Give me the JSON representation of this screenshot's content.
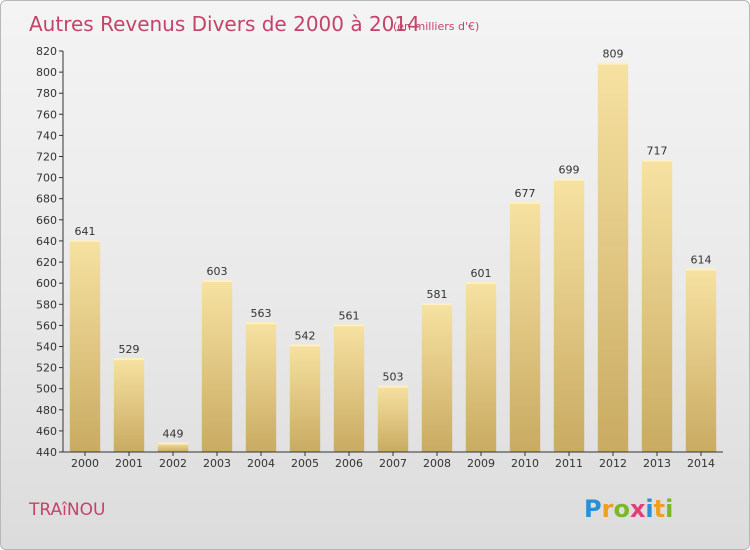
{
  "title": "Autres Revenus Divers de 2000 à 2014",
  "subtitle": "(en milliers d'€)",
  "commune": "TRAîNOU",
  "logo": {
    "text": "Proxiti",
    "letters": [
      {
        "ch": "P",
        "color": "#2a8fd6"
      },
      {
        "ch": "r",
        "color": "#f0a020"
      },
      {
        "ch": "o",
        "color": "#7ab828"
      },
      {
        "ch": "x",
        "color": "#e23f7a"
      },
      {
        "ch": "i",
        "color": "#2a8fd6"
      },
      {
        "ch": "t",
        "color": "#f0a020"
      },
      {
        "ch": "i",
        "color": "#7ab828"
      }
    ]
  },
  "colors": {
    "bar_top": "#f7e2a2",
    "bar_bottom": "#c9ab62",
    "accent": "#c4436a",
    "axis": "#333333"
  },
  "chart_data": {
    "type": "bar",
    "title": "Autres Revenus Divers de 2000 à 2014",
    "subtitle": "(en milliers d'€)",
    "xlabel": "",
    "ylabel": "",
    "categories": [
      "2000",
      "2001",
      "2002",
      "2003",
      "2004",
      "2005",
      "2006",
      "2007",
      "2008",
      "2009",
      "2010",
      "2011",
      "2012",
      "2013",
      "2014"
    ],
    "values": [
      641,
      529,
      449,
      603,
      563,
      542,
      561,
      503,
      581,
      601,
      677,
      699,
      809,
      717,
      614
    ],
    "ylim": [
      440,
      820
    ],
    "yticks": [
      440,
      460,
      480,
      500,
      520,
      540,
      560,
      580,
      600,
      620,
      640,
      660,
      680,
      700,
      720,
      740,
      760,
      780,
      800,
      820
    ],
    "grid": false,
    "data_labels": true
  }
}
